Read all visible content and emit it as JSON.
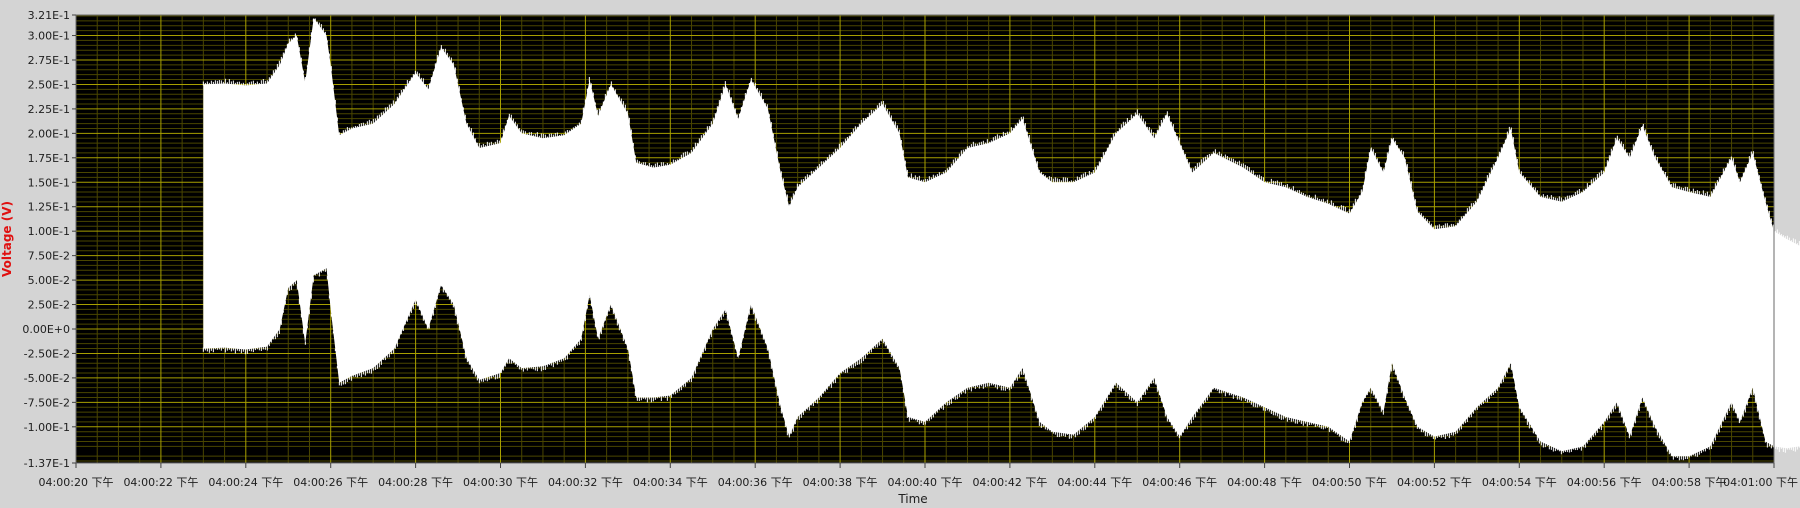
{
  "chart_data": {
    "type": "area",
    "title": "",
    "xlabel": "Time",
    "ylabel": "Voltage (V)",
    "xlim": [
      "04:00:20",
      "04:01:00"
    ],
    "ylim": [
      -0.137,
      0.321
    ],
    "y_ticks": [
      {
        "value": 0.321,
        "label": "3.21E-1"
      },
      {
        "value": 0.3,
        "label": "3.00E-1"
      },
      {
        "value": 0.275,
        "label": "2.75E-1"
      },
      {
        "value": 0.25,
        "label": "2.50E-1"
      },
      {
        "value": 0.225,
        "label": "2.25E-1"
      },
      {
        "value": 0.2,
        "label": "2.00E-1"
      },
      {
        "value": 0.175,
        "label": "1.75E-1"
      },
      {
        "value": 0.15,
        "label": "1.50E-1"
      },
      {
        "value": 0.125,
        "label": "1.25E-1"
      },
      {
        "value": 0.1,
        "label": "1.00E-1"
      },
      {
        "value": 0.075,
        "label": "7.50E-2"
      },
      {
        "value": 0.05,
        "label": "5.00E-2"
      },
      {
        "value": 0.025,
        "label": "2.50E-2"
      },
      {
        "value": 0.0,
        "label": "0.00E+0"
      },
      {
        "value": -0.025,
        "label": "-2.50E-2"
      },
      {
        "value": -0.05,
        "label": "-5.00E-2"
      },
      {
        "value": -0.075,
        "label": "-7.50E-2"
      },
      {
        "value": -0.1,
        "label": "-1.00E-1"
      },
      {
        "value": -0.137,
        "label": "-1.37E-1"
      }
    ],
    "x_ticks": [
      {
        "value": "04:00:20",
        "label": "04:00:20 下午"
      },
      {
        "value": "04:00:22",
        "label": "04:00:22 下午"
      },
      {
        "value": "04:00:24",
        "label": "04:00:24 下午"
      },
      {
        "value": "04:00:26",
        "label": "04:00:26 下午"
      },
      {
        "value": "04:00:28",
        "label": "04:00:28 下午"
      },
      {
        "value": "04:00:30",
        "label": "04:00:30 下午"
      },
      {
        "value": "04:00:32",
        "label": "04:00:32 下午"
      },
      {
        "value": "04:00:34",
        "label": "04:00:34 下午"
      },
      {
        "value": "04:00:36",
        "label": "04:00:36 下午"
      },
      {
        "value": "04:00:38",
        "label": "04:00:38 下午"
      },
      {
        "value": "04:00:40",
        "label": "04:00:40 下午"
      },
      {
        "value": "04:00:42",
        "label": "04:00:42 下午"
      },
      {
        "value": "04:00:44",
        "label": "04:00:44 下午"
      },
      {
        "value": "04:00:46",
        "label": "04:00:46 下午"
      },
      {
        "value": "04:00:48",
        "label": "04:00:48 下午"
      },
      {
        "value": "04:00:50",
        "label": "04:00:50 下午"
      },
      {
        "value": "04:00:52",
        "label": "04:00:52 下午"
      },
      {
        "value": "04:00:54",
        "label": "04:00:54 下午"
      },
      {
        "value": "04:00:56",
        "label": "04:00:56 下午"
      },
      {
        "value": "04:00:58",
        "label": "04:00:58 下午"
      },
      {
        "value": "04:01:00",
        "label": "04:01:00 下午"
      }
    ],
    "grid": true,
    "colors": {
      "plot_background": "#000000",
      "grid_major": "#a8a000",
      "grid_minor": "#4a4600",
      "signal": "#ffffff",
      "ylabel": "#e01010",
      "frame": "#d4d4d4"
    },
    "series": [
      {
        "upper": [
          [
            "04:00:23.0",
            0.25
          ],
          [
            "04:00:23.5",
            0.251
          ],
          [
            "04:00:24.0",
            0.249
          ],
          [
            "04:00:24.5",
            0.251
          ],
          [
            "04:00:24.8",
            0.27
          ],
          [
            "04:00:25.0",
            0.292
          ],
          [
            "04:00:25.2",
            0.3
          ],
          [
            "04:00:25.4",
            0.252
          ],
          [
            "04:00:25.6",
            0.318
          ],
          [
            "04:00:25.9",
            0.3
          ],
          [
            "04:00:26.0",
            0.27
          ],
          [
            "04:00:26.2",
            0.198
          ],
          [
            "04:00:26.5",
            0.205
          ],
          [
            "04:00:27.0",
            0.21
          ],
          [
            "04:00:27.5",
            0.23
          ],
          [
            "04:00:28.0",
            0.262
          ],
          [
            "04:00:28.3",
            0.245
          ],
          [
            "04:00:28.6",
            0.288
          ],
          [
            "04:00:28.9",
            0.27
          ],
          [
            "04:00:29.2",
            0.21
          ],
          [
            "04:00:29.5",
            0.185
          ],
          [
            "04:00:30.0",
            0.19
          ],
          [
            "04:00:30.2",
            0.218
          ],
          [
            "04:00:30.5",
            0.2
          ],
          [
            "04:00:31.0",
            0.195
          ],
          [
            "04:00:31.5",
            0.198
          ],
          [
            "04:00:31.9",
            0.21
          ],
          [
            "04:00:32.1",
            0.255
          ],
          [
            "04:00:32.3",
            0.218
          ],
          [
            "04:00:32.6",
            0.25
          ],
          [
            "04:00:33.0",
            0.22
          ],
          [
            "04:00:33.2",
            0.17
          ],
          [
            "04:00:33.6",
            0.165
          ],
          [
            "04:00:34.0",
            0.168
          ],
          [
            "04:00:34.5",
            0.18
          ],
          [
            "04:00:35.0",
            0.21
          ],
          [
            "04:00:35.3",
            0.25
          ],
          [
            "04:00:35.6",
            0.215
          ],
          [
            "04:00:35.9",
            0.255
          ],
          [
            "04:00:36.3",
            0.225
          ],
          [
            "04:00:36.6",
            0.16
          ],
          [
            "04:00:36.8",
            0.125
          ],
          [
            "04:00:37.0",
            0.145
          ],
          [
            "04:00:37.5",
            0.165
          ],
          [
            "04:00:38.0",
            0.185
          ],
          [
            "04:00:38.5",
            0.21
          ],
          [
            "04:00:39.0",
            0.23
          ],
          [
            "04:00:39.4",
            0.2
          ],
          [
            "04:00:39.6",
            0.155
          ],
          [
            "04:00:40.0",
            0.15
          ],
          [
            "04:00:40.5",
            0.16
          ],
          [
            "04:00:41.0",
            0.185
          ],
          [
            "04:00:41.5",
            0.19
          ],
          [
            "04:00:42.0",
            0.2
          ],
          [
            "04:00:42.3",
            0.215
          ],
          [
            "04:00:42.7",
            0.16
          ],
          [
            "04:00:43.0",
            0.15
          ],
          [
            "04:00:43.5",
            0.15
          ],
          [
            "04:00:44.0",
            0.16
          ],
          [
            "04:00:44.5",
            0.2
          ],
          [
            "04:00:45.0",
            0.22
          ],
          [
            "04:00:45.4",
            0.195
          ],
          [
            "04:00:45.7",
            0.22
          ],
          [
            "04:00:46.0",
            0.19
          ],
          [
            "04:00:46.3",
            0.16
          ],
          [
            "04:00:46.8",
            0.18
          ],
          [
            "04:00:47.5",
            0.165
          ],
          [
            "04:00:48.0",
            0.15
          ],
          [
            "04:00:48.5",
            0.145
          ],
          [
            "04:00:49.0",
            0.135
          ],
          [
            "04:00:49.5",
            0.128
          ],
          [
            "04:00:50.0",
            0.118
          ],
          [
            "04:00:50.3",
            0.14
          ],
          [
            "04:00:50.5",
            0.185
          ],
          [
            "04:00:50.8",
            0.16
          ],
          [
            "04:00:51.0",
            0.195
          ],
          [
            "04:00:51.3",
            0.175
          ],
          [
            "04:00:51.6",
            0.12
          ],
          [
            "04:00:52.0",
            0.102
          ],
          [
            "04:00:52.5",
            0.105
          ],
          [
            "04:00:53.0",
            0.13
          ],
          [
            "04:00:53.5",
            0.175
          ],
          [
            "04:00:53.8",
            0.205
          ],
          [
            "04:00:54.0",
            0.16
          ],
          [
            "04:00:54.5",
            0.135
          ],
          [
            "04:00:55.0",
            0.13
          ],
          [
            "04:00:55.5",
            0.14
          ],
          [
            "04:00:56.0",
            0.16
          ],
          [
            "04:00:56.3",
            0.195
          ],
          [
            "04:00:56.6",
            0.175
          ],
          [
            "04:00:56.9",
            0.208
          ],
          [
            "04:00:57.2",
            0.175
          ],
          [
            "04:00:57.6",
            0.145
          ],
          [
            "04:00:58.0",
            0.14
          ],
          [
            "04:00:58.5",
            0.135
          ],
          [
            "04:00:59.0",
            0.175
          ],
          [
            "04:00:59.2",
            0.15
          ],
          [
            "04:00:59.5",
            0.18
          ],
          [
            "04:00:59.8",
            0.13
          ],
          [
            "04:01:00.0",
            0.1
          ],
          [
            "04:01:00.3",
            0.092
          ],
          [
            "04:01:00.6",
            0.085
          ],
          [
            "04:01:00.8",
            0.09
          ]
        ],
        "lower": [
          [
            "04:00:23.0",
            -0.02
          ],
          [
            "04:00:23.5",
            -0.019
          ],
          [
            "04:00:24.0",
            -0.021
          ],
          [
            "04:00:24.5",
            -0.018
          ],
          [
            "04:00:24.8",
            0.0
          ],
          [
            "04:00:25.0",
            0.042
          ],
          [
            "04:00:25.2",
            0.05
          ],
          [
            "04:00:25.4",
            -0.015
          ],
          [
            "04:00:25.6",
            0.055
          ],
          [
            "04:00:25.9",
            0.062
          ],
          [
            "04:00:26.0",
            0.02
          ],
          [
            "04:00:26.2",
            -0.055
          ],
          [
            "04:00:26.5",
            -0.048
          ],
          [
            "04:00:27.0",
            -0.04
          ],
          [
            "04:00:27.5",
            -0.02
          ],
          [
            "04:00:28.0",
            0.03
          ],
          [
            "04:00:28.3",
            0.0
          ],
          [
            "04:00:28.6",
            0.045
          ],
          [
            "04:00:28.9",
            0.025
          ],
          [
            "04:00:29.2",
            -0.03
          ],
          [
            "04:00:29.5",
            -0.052
          ],
          [
            "04:00:30.0",
            -0.045
          ],
          [
            "04:00:30.2",
            -0.03
          ],
          [
            "04:00:30.5",
            -0.04
          ],
          [
            "04:00:31.0",
            -0.038
          ],
          [
            "04:00:31.5",
            -0.03
          ],
          [
            "04:00:31.9",
            -0.01
          ],
          [
            "04:00:32.1",
            0.035
          ],
          [
            "04:00:32.3",
            -0.01
          ],
          [
            "04:00:32.6",
            0.025
          ],
          [
            "04:00:33.0",
            -0.02
          ],
          [
            "04:00:33.2",
            -0.07
          ],
          [
            "04:00:33.6",
            -0.07
          ],
          [
            "04:00:34.0",
            -0.068
          ],
          [
            "04:00:34.5",
            -0.05
          ],
          [
            "04:00:35.0",
            0.0
          ],
          [
            "04:00:35.3",
            0.02
          ],
          [
            "04:00:35.6",
            -0.03
          ],
          [
            "04:00:35.9",
            0.025
          ],
          [
            "04:00:36.3",
            -0.02
          ],
          [
            "04:00:36.6",
            -0.08
          ],
          [
            "04:00:36.8",
            -0.11
          ],
          [
            "04:00:37.0",
            -0.09
          ],
          [
            "04:00:37.5",
            -0.07
          ],
          [
            "04:00:38.0",
            -0.045
          ],
          [
            "04:00:38.5",
            -0.03
          ],
          [
            "04:00:39.0",
            -0.01
          ],
          [
            "04:00:39.4",
            -0.04
          ],
          [
            "04:00:39.6",
            -0.09
          ],
          [
            "04:00:40.0",
            -0.095
          ],
          [
            "04:00:40.5",
            -0.075
          ],
          [
            "04:00:41.0",
            -0.06
          ],
          [
            "04:00:41.5",
            -0.055
          ],
          [
            "04:00:42.0",
            -0.06
          ],
          [
            "04:00:42.3",
            -0.04
          ],
          [
            "04:00:42.7",
            -0.095
          ],
          [
            "04:00:43.0",
            -0.105
          ],
          [
            "04:00:43.5",
            -0.108
          ],
          [
            "04:00:44.0",
            -0.09
          ],
          [
            "04:00:44.5",
            -0.055
          ],
          [
            "04:00:45.0",
            -0.075
          ],
          [
            "04:00:45.4",
            -0.05
          ],
          [
            "04:00:45.7",
            -0.09
          ],
          [
            "04:00:46.0",
            -0.11
          ],
          [
            "04:00:46.3",
            -0.09
          ],
          [
            "04:00:46.8",
            -0.06
          ],
          [
            "04:00:47.5",
            -0.07
          ],
          [
            "04:00:48.0",
            -0.08
          ],
          [
            "04:00:48.5",
            -0.09
          ],
          [
            "04:00:49.0",
            -0.095
          ],
          [
            "04:00:49.5",
            -0.1
          ],
          [
            "04:00:50.0",
            -0.115
          ],
          [
            "04:00:50.3",
            -0.075
          ],
          [
            "04:00:50.5",
            -0.06
          ],
          [
            "04:00:50.8",
            -0.085
          ],
          [
            "04:00:51.0",
            -0.035
          ],
          [
            "04:00:51.3",
            -0.07
          ],
          [
            "04:00:51.6",
            -0.1
          ],
          [
            "04:00:52.0",
            -0.11
          ],
          [
            "04:00:52.5",
            -0.105
          ],
          [
            "04:00:53.0",
            -0.08
          ],
          [
            "04:00:53.5",
            -0.06
          ],
          [
            "04:00:53.8",
            -0.035
          ],
          [
            "04:00:54.0",
            -0.08
          ],
          [
            "04:00:54.5",
            -0.115
          ],
          [
            "04:00:55.0",
            -0.125
          ],
          [
            "04:00:55.5",
            -0.12
          ],
          [
            "04:00:56.0",
            -0.095
          ],
          [
            "04:00:56.3",
            -0.075
          ],
          [
            "04:00:56.6",
            -0.11
          ],
          [
            "04:00:56.9",
            -0.07
          ],
          [
            "04:00:57.2",
            -0.1
          ],
          [
            "04:00:57.6",
            -0.13
          ],
          [
            "04:00:58.0",
            -0.13
          ],
          [
            "04:00:58.5",
            -0.12
          ],
          [
            "04:00:59.0",
            -0.075
          ],
          [
            "04:00:59.2",
            -0.095
          ],
          [
            "04:00:59.5",
            -0.06
          ],
          [
            "04:00:59.8",
            -0.115
          ],
          [
            "04:01:00.0",
            -0.12
          ],
          [
            "04:01:00.3",
            -0.122
          ],
          [
            "04:01:00.6",
            -0.12
          ],
          [
            "04:01:00.8",
            -0.118
          ]
        ]
      }
    ]
  }
}
